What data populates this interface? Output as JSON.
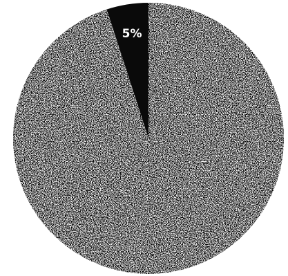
{
  "chart_data": {
    "type": "pie",
    "start_angle_deg": 0,
    "direction": "counterclockwise",
    "slices": [
      {
        "label": "5%",
        "value": 5,
        "color": "#0a0a0a",
        "label_color": "#ffffff",
        "fill_style": "solid"
      },
      {
        "label": "",
        "value": 95,
        "color": "#9a9a9a",
        "label_color": "#000000",
        "fill_style": "stippled"
      }
    ]
  }
}
